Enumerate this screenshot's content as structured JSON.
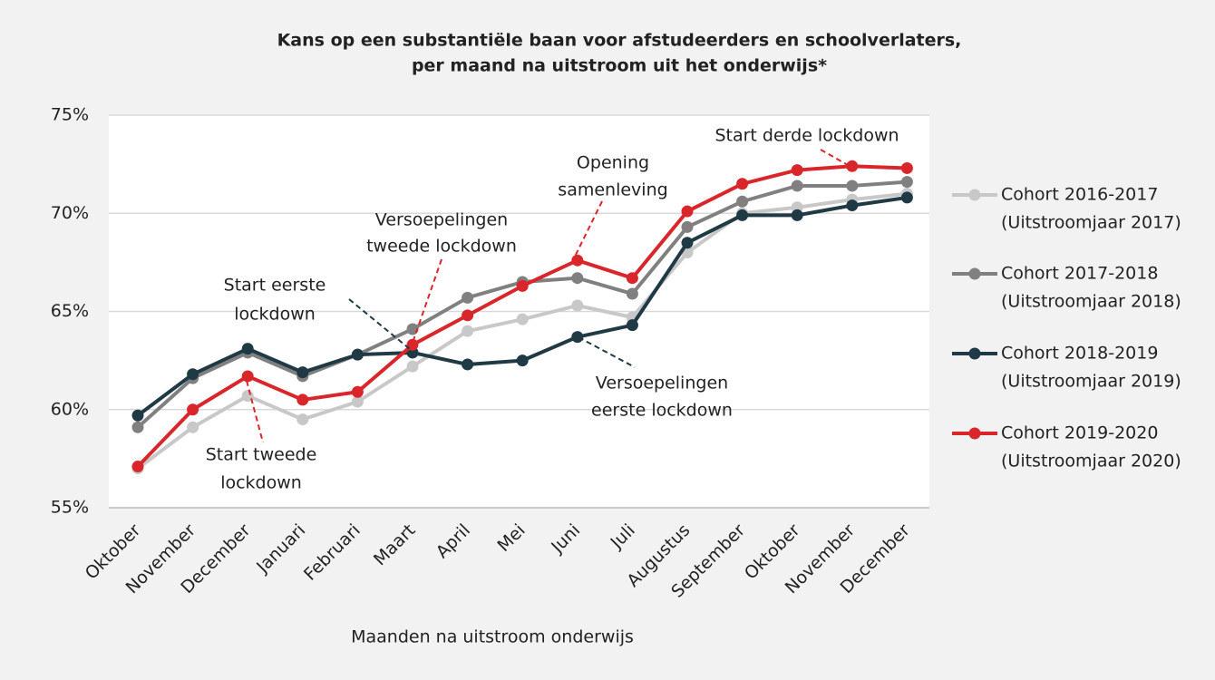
{
  "chart_data": {
    "type": "line",
    "title": [
      "Kans op een substantiële baan voor afstudeerders en schoolverlaters,",
      "per maand na uitstroom uit het onderwijs*"
    ],
    "x_label": "Maanden na uitstroom onderwijs",
    "categories": [
      "Oktober",
      "November",
      "December",
      "Januari",
      "Februari",
      "Maart",
      "April",
      "Mei",
      "Juni",
      "Juli",
      "Augustus",
      "September",
      "Oktober",
      "November",
      "December"
    ],
    "ylim": [
      55,
      75
    ],
    "yticks": [
      {
        "value": 55,
        "label": "55%"
      },
      {
        "value": 60,
        "label": "60%"
      },
      {
        "value": 65,
        "label": "65%"
      },
      {
        "value": 70,
        "label": "70%"
      },
      {
        "value": 75,
        "label": "75%"
      }
    ],
    "grid": true,
    "legend": "right",
    "series": [
      {
        "name": "Cohort 2016-2017",
        "note": "(Uitstroomjaar 2017)",
        "color": "#c8c8c8",
        "values": [
          57.0,
          59.1,
          60.7,
          59.5,
          60.4,
          62.2,
          64.0,
          64.6,
          65.3,
          64.7,
          68.0,
          70.0,
          70.3,
          70.7,
          71.0
        ]
      },
      {
        "name": "Cohort 2017-2018",
        "note": "(Uitstroomjaar 2018)",
        "color": "#808080",
        "values": [
          59.1,
          61.6,
          62.9,
          61.7,
          62.8,
          64.1,
          65.7,
          66.5,
          66.7,
          65.9,
          69.3,
          70.6,
          71.4,
          71.4,
          71.6
        ]
      },
      {
        "name": "Cohort 2018-2019",
        "note": "(Uitstroomjaar 2019)",
        "color": "#1f3a45",
        "values": [
          59.7,
          61.8,
          63.1,
          61.9,
          62.8,
          62.9,
          62.3,
          62.5,
          63.7,
          64.3,
          68.5,
          69.9,
          69.9,
          70.4,
          70.8
        ]
      },
      {
        "name": "Cohort 2019-2020",
        "note": "(Uitstroomjaar 2020)",
        "color": "#d9262b",
        "values": [
          57.1,
          60.0,
          61.7,
          60.5,
          60.9,
          63.3,
          64.8,
          66.3,
          67.6,
          66.7,
          70.1,
          71.5,
          72.2,
          72.4,
          72.3
        ]
      }
    ],
    "annotations": [
      {
        "text": [
          "Start eerste",
          "lockdown"
        ],
        "color": "#1f3a45"
      },
      {
        "text": [
          "Start tweede",
          "lockdown"
        ],
        "color": "#d9262b"
      },
      {
        "text": [
          "Versoepelingen",
          "tweede lockdown"
        ],
        "color": "#d9262b"
      },
      {
        "text": [
          "Opening",
          "samenleving"
        ],
        "color": "#d9262b"
      },
      {
        "text": [
          "Versoepelingen",
          "eerste lockdown"
        ],
        "color": "#1f3a45"
      },
      {
        "text": [
          "Start derde lockdown"
        ],
        "color": "#d9262b"
      }
    ]
  }
}
